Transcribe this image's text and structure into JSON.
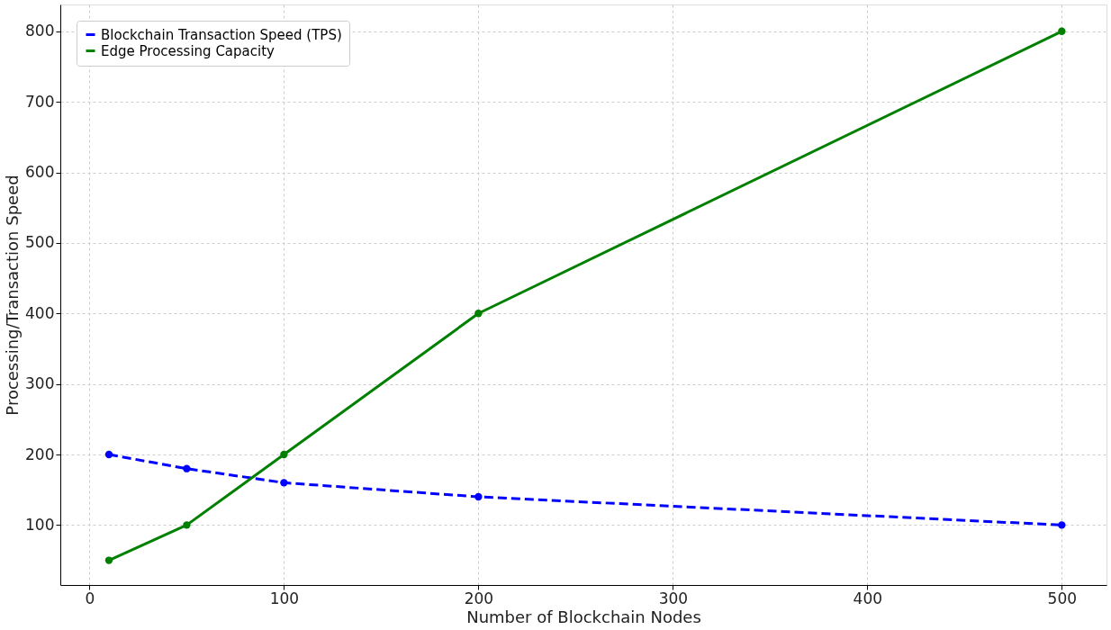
{
  "chart_data": {
    "type": "line",
    "xlabel": "Number of Blockchain Nodes",
    "ylabel": "Processing/Transaction Speed",
    "x": [
      10,
      50,
      100,
      200,
      500
    ],
    "series": [
      {
        "name": "Blockchain Transaction Speed (TPS)",
        "color": "#0000ff",
        "values": [
          200,
          180,
          160,
          140,
          100
        ],
        "line_style": "dashed"
      },
      {
        "name": "Edge Processing Capacity",
        "color": "#008000",
        "values": [
          50,
          100,
          200,
          400,
          800
        ],
        "line_style": "solid"
      }
    ],
    "xlim": [
      -15,
      523
    ],
    "ylim": [
      15,
      838
    ],
    "xticks": [
      0,
      100,
      200,
      300,
      400,
      500
    ],
    "yticks": [
      100,
      200,
      300,
      400,
      500,
      600,
      700,
      800
    ],
    "grid": true,
    "legend": "top left",
    "marker": "circle"
  }
}
